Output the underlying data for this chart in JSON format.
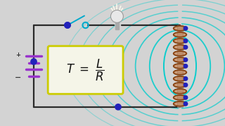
{
  "bg_color": "#d3d3d3",
  "wire_color": "#2a2a2a",
  "node_color": "#2222bb",
  "switch_color": "#00aacc",
  "battery_color": "#9933cc",
  "formula_box_edge": "#cccc00",
  "formula_box_face": "#f5f5e8",
  "field_color": "#00cccc",
  "coil_color": "#8B4513",
  "core_color": "#999999",
  "bulb_base_color": "#aaaaaa",
  "bulb_glass_color": "#e8e8e8"
}
